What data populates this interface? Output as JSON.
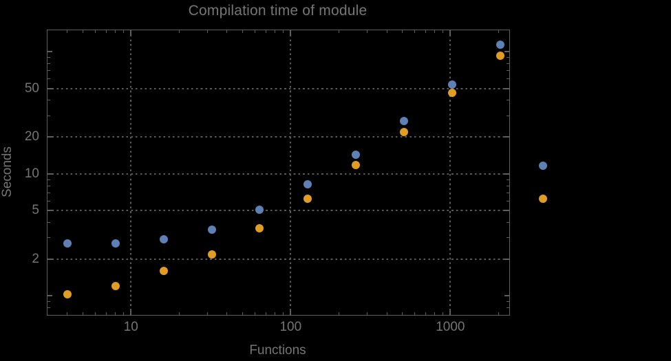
{
  "colors": {
    "background": "#000000",
    "frame": "#5f5f5f",
    "gridline": "#5a5a5a",
    "text": "#757575",
    "series_blue": "#5e81b5",
    "series_orange": "#e19c24"
  },
  "chart_data": {
    "type": "scatter",
    "title": "Compilation time of module",
    "xlabel": "Functions",
    "ylabel": "Seconds",
    "log_x": true,
    "log_y": true,
    "grid": "dotted",
    "xlim": [
      3.0,
      2340
    ],
    "ylim": [
      0.7,
      150
    ],
    "x_ticks": [
      10,
      100,
      1000
    ],
    "y_ticks": [
      2,
      5,
      10,
      20,
      50
    ],
    "x": [
      4,
      8,
      16,
      32,
      64,
      128,
      256,
      512,
      1024,
      2048
    ],
    "series": [
      {
        "name": "blue-series",
        "color": "#5e81b5",
        "values": [
          2.7,
          2.7,
          2.9,
          3.5,
          5.1,
          8.2,
          14.3,
          27,
          54,
          114
        ]
      },
      {
        "name": "orange-series",
        "color": "#e19c24",
        "values": [
          1.03,
          1.2,
          1.6,
          2.2,
          3.6,
          6.3,
          11.8,
          22,
          46,
          93
        ]
      }
    ],
    "legend_markers": [
      {
        "name": "legend-marker-blue",
        "color": "#5e81b5",
        "label": ""
      },
      {
        "name": "legend-marker-orange",
        "color": "#e19c24",
        "label": ""
      }
    ],
    "legend_position": "right"
  }
}
